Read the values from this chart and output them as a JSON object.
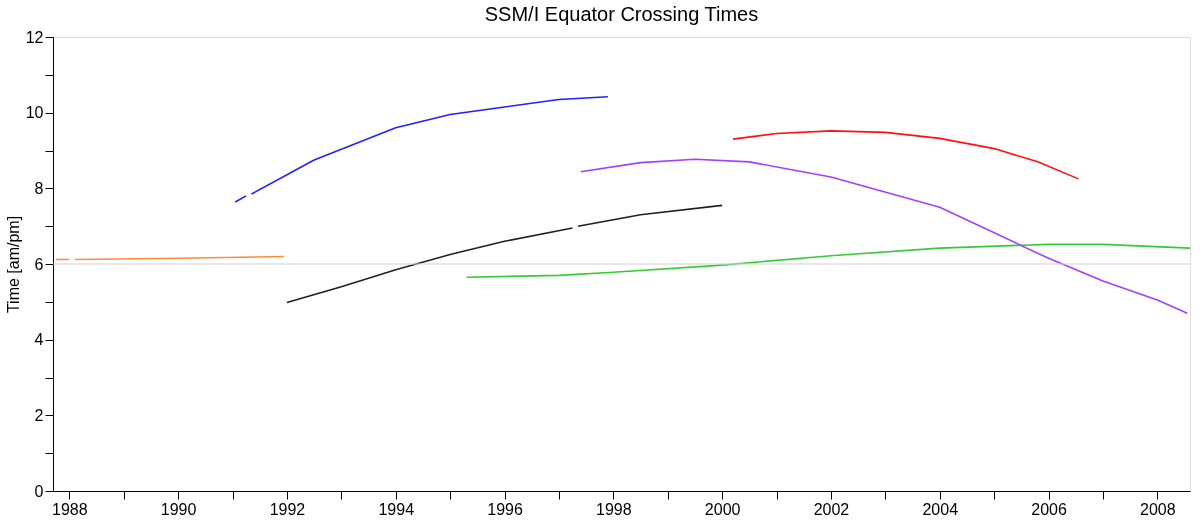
{
  "chart_data": {
    "type": "line",
    "title": "SSM/I Equator Crossing Times",
    "ylabel": "Time [am/pm]",
    "xlim": [
      1987.7,
      2008.6
    ],
    "ylim": [
      0,
      12
    ],
    "xticks": [
      1988,
      {
        "value": 1989,
        "label": null
      },
      1990,
      {
        "value": 1991,
        "label": null
      },
      1992,
      {
        "value": 1993,
        "label": null
      },
      1994,
      {
        "value": 1995,
        "label": null
      },
      1996,
      {
        "value": 1997,
        "label": null
      },
      1998,
      {
        "value": 1999,
        "label": null
      },
      2000,
      {
        "value": 2001,
        "label": null
      },
      2002,
      {
        "value": 2003,
        "label": null
      },
      2004,
      {
        "value": 2005,
        "label": null
      },
      2006,
      {
        "value": 2007,
        "label": null
      },
      2008
    ],
    "yticks": [
      0,
      {
        "value": 1,
        "label": null
      },
      2,
      {
        "value": 3,
        "label": null
      },
      4,
      {
        "value": 5,
        "label": null
      },
      6,
      {
        "value": 7,
        "label": null
      },
      8,
      {
        "value": 9,
        "label": null
      },
      10,
      {
        "value": 11,
        "label": null
      },
      12
    ],
    "grid": false,
    "legend": false,
    "line_style": "solid",
    "marker": "none",
    "ref_lines": [
      {
        "axis": "y",
        "value": 6,
        "label": null,
        "color": "#d0d0d0"
      }
    ],
    "series": [
      {
        "color": "#ff8c3a",
        "x": [
          1987.75,
          1988.0,
          1988.05,
          1988.1,
          1990.0,
          1991.95
        ],
        "values": [
          6.12,
          6.12,
          null,
          6.12,
          6.15,
          6.2
        ]
      },
      {
        "color": "#2020ff",
        "x": [
          1991.05,
          1991.25,
          1991.3,
          1991.35,
          1992.5,
          1994.0,
          1995.0,
          1996.0,
          1997.0,
          1997.9
        ],
        "values": [
          7.64,
          7.8,
          null,
          7.85,
          8.75,
          9.6,
          9.95,
          10.15,
          10.35,
          10.42
        ]
      },
      {
        "color": "#202020",
        "x": [
          1992.0,
          1993.0,
          1994.0,
          1995.0,
          1996.0,
          1997.25,
          1997.3,
          1997.35,
          1998.5,
          2000.0
        ],
        "values": [
          4.98,
          5.4,
          5.85,
          6.25,
          6.6,
          6.95,
          null,
          7.0,
          7.3,
          7.55
        ]
      },
      {
        "color": "#33cc33",
        "x": [
          1995.3,
          1997.0,
          1998.0,
          2000.0,
          2002.0,
          2004.0,
          2006.0,
          2007.0,
          2008.6
        ],
        "values": [
          5.65,
          5.7,
          5.78,
          5.97,
          6.22,
          6.42,
          6.52,
          6.52,
          6.42
        ]
      },
      {
        "color": "#a040ff",
        "x": [
          1997.4,
          1998.5,
          1999.5,
          2000.5,
          2002.0,
          2004.0,
          2006.0,
          2007.0,
          2008.0,
          2008.55
        ],
        "values": [
          8.44,
          8.68,
          8.77,
          8.7,
          8.3,
          7.5,
          6.15,
          5.55,
          5.05,
          4.7
        ]
      },
      {
        "color": "#ff1010",
        "x": [
          2000.2,
          2001.0,
          2002.0,
          2003.0,
          2004.0,
          2005.0,
          2005.8,
          2006.55
        ],
        "values": [
          9.3,
          9.45,
          9.52,
          9.48,
          9.32,
          9.05,
          8.7,
          8.25
        ]
      }
    ]
  }
}
